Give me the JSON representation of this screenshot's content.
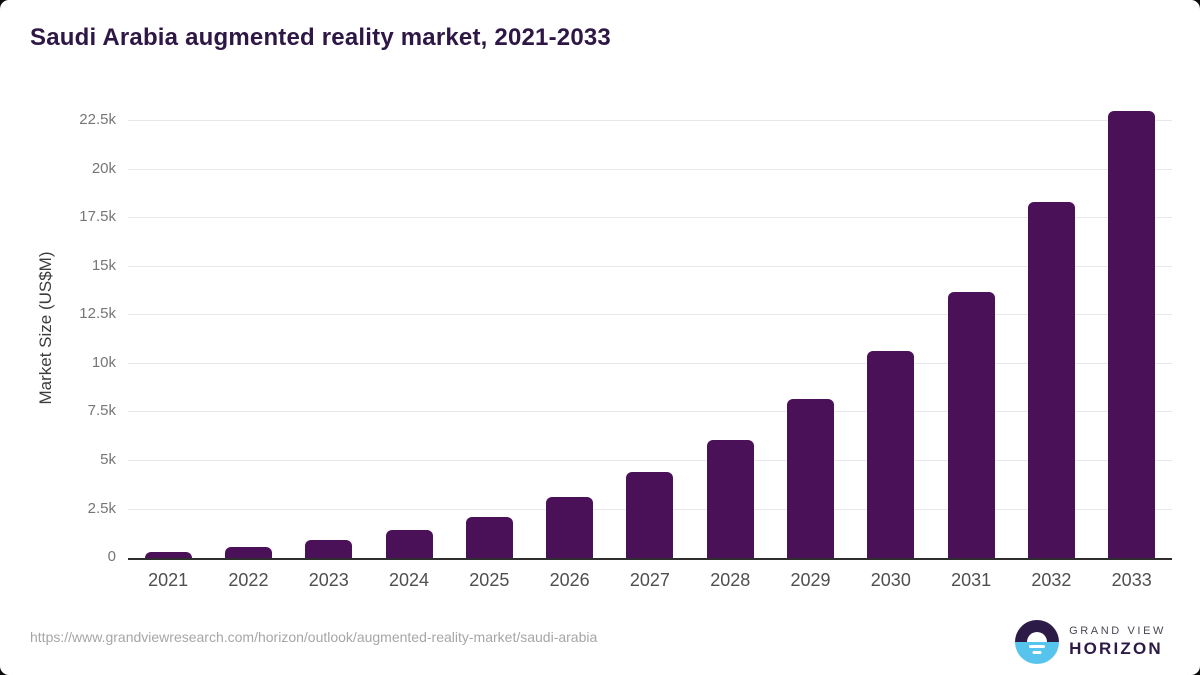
{
  "title": "Saudi Arabia augmented reality market, 2021-2033",
  "chart_data": {
    "type": "bar",
    "title": "Saudi Arabia augmented reality market, 2021-2033",
    "categories": [
      "2021",
      "2022",
      "2023",
      "2024",
      "2025",
      "2026",
      "2027",
      "2028",
      "2029",
      "2030",
      "2031",
      "2032",
      "2033"
    ],
    "values": [
      330,
      570,
      930,
      1420,
      2100,
      3130,
      4420,
      6100,
      8200,
      10650,
      13700,
      18320,
      23030
    ],
    "xlabel": "",
    "ylabel": "Market Size (US$M)",
    "ylim": [
      0,
      23700
    ],
    "yticks": [
      {
        "value": 0,
        "label": "0"
      },
      {
        "value": 2500,
        "label": "2.5k"
      },
      {
        "value": 5000,
        "label": "5k"
      },
      {
        "value": 7500,
        "label": "7.5k"
      },
      {
        "value": 10000,
        "label": "10k"
      },
      {
        "value": 12500,
        "label": "12.5k"
      },
      {
        "value": 15000,
        "label": "15k"
      },
      {
        "value": 17500,
        "label": "17.5k"
      },
      {
        "value": 20000,
        "label": "20k"
      },
      {
        "value": 22500,
        "label": "22.5k"
      }
    ],
    "grid": true,
    "legend": false,
    "bar_color": "#4a1158"
  },
  "footer": {
    "source_url": "https://www.grandviewresearch.com/horizon/outlook/augmented-reality-market/saudi-arabia",
    "logo": {
      "line1": "GRAND VIEW",
      "line2": "HORIZON"
    }
  },
  "colors": {
    "bar": "#4a1158",
    "title_text": "#2e1745",
    "gridline": "#e8e8ea",
    "axis_line": "#2e2e2e",
    "tick_text": "#767676",
    "logo_dark": "#2d1b47",
    "logo_blue": "#57c4ee"
  }
}
